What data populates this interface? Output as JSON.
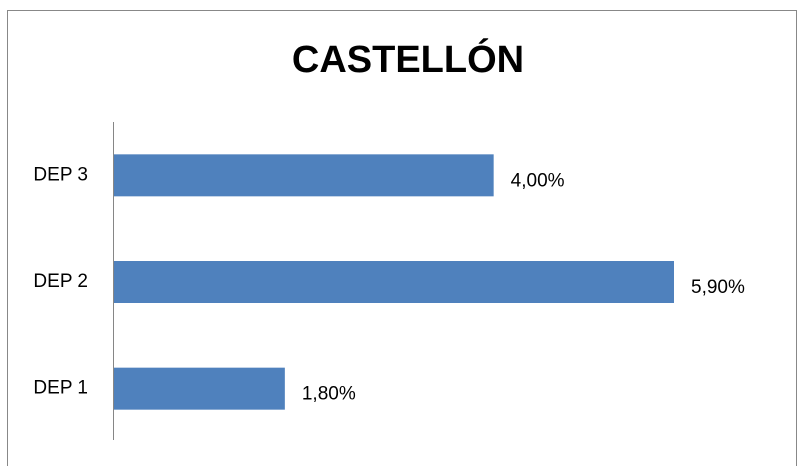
{
  "chart_data": {
    "type": "bar",
    "orientation": "horizontal",
    "title": "CASTELLÓN",
    "categories": [
      "DEP 1",
      "DEP 2",
      "DEP 3"
    ],
    "values": [
      1.8,
      5.9,
      4.0
    ],
    "value_labels": [
      "1,80%",
      "5,90%",
      "4,00%"
    ],
    "color": "#4f81bd"
  }
}
